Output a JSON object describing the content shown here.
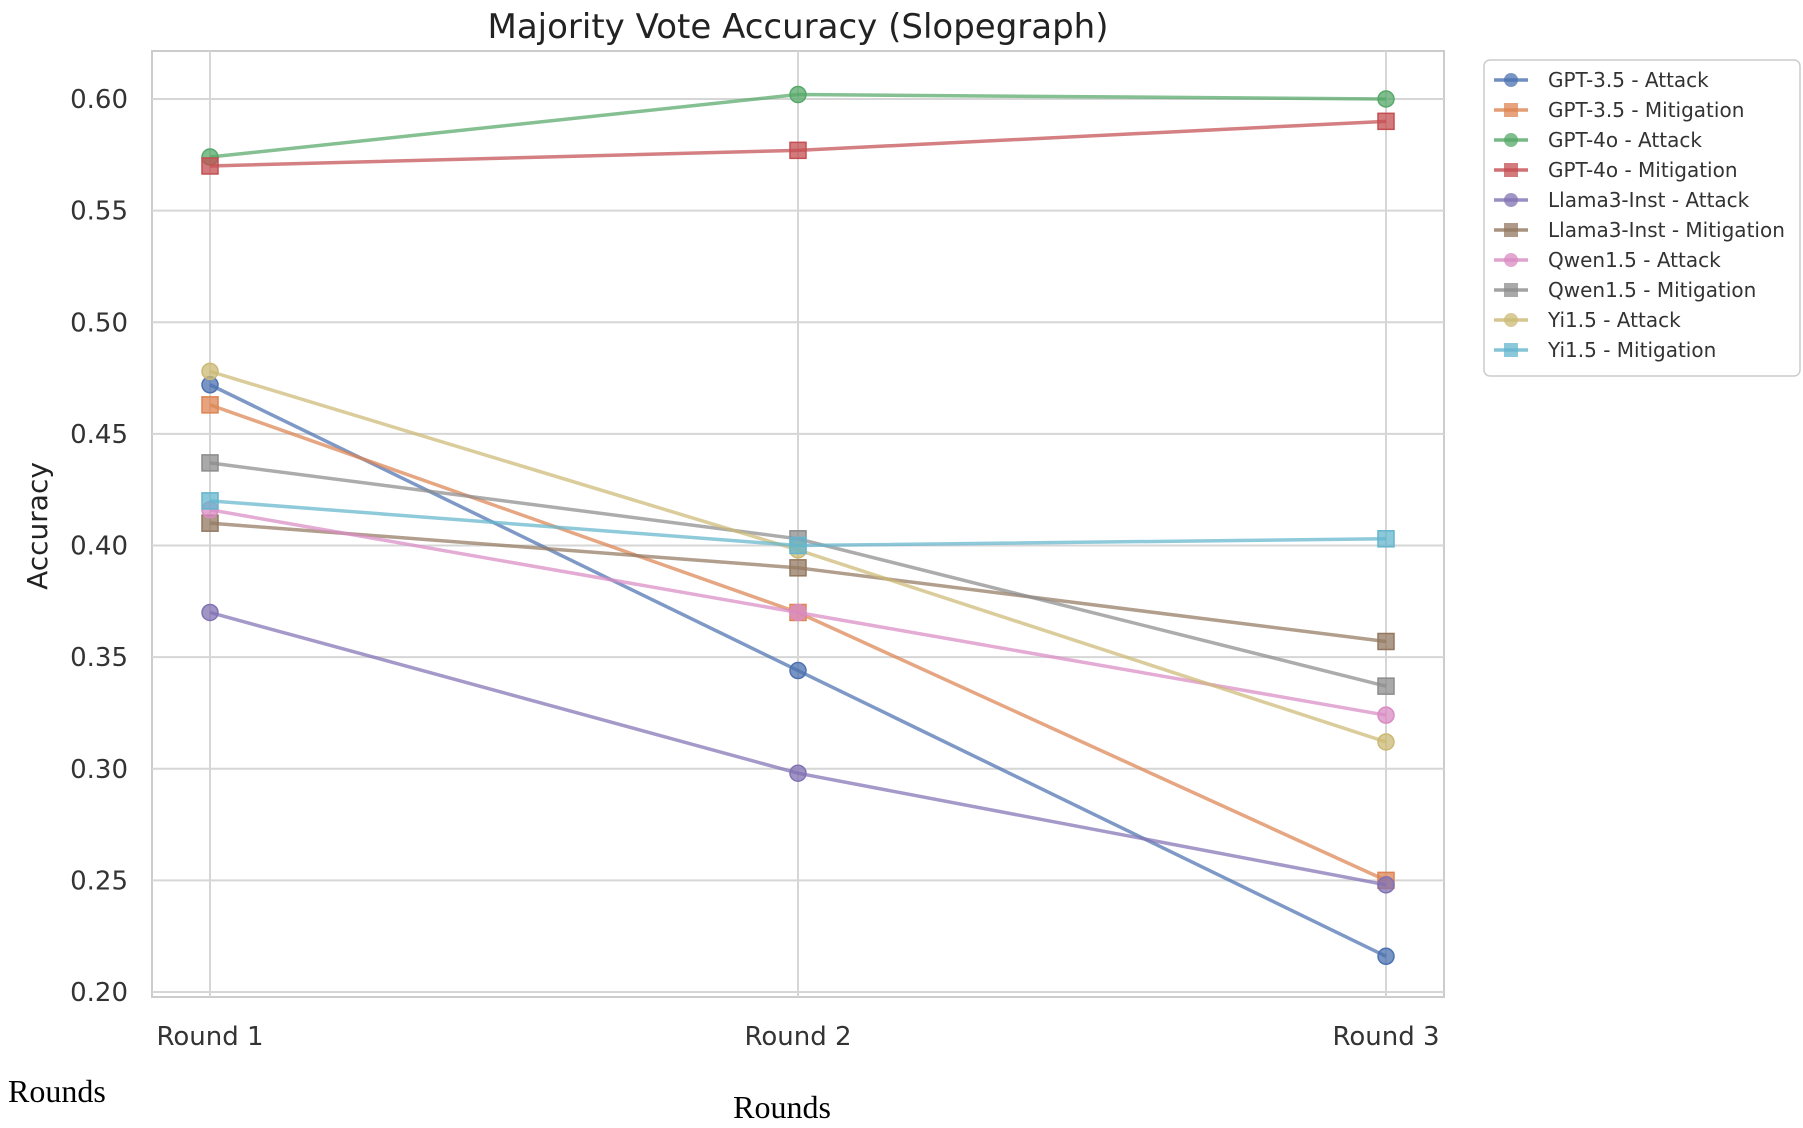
{
  "chart_data": {
    "type": "line",
    "title": "Majority Vote Accuracy (Slopegraph)",
    "xlabel": "Rounds",
    "ylabel": "Accuracy",
    "x": [
      "Round 1",
      "Round 2",
      "Round 3"
    ],
    "ylim": [
      0.2,
      0.62
    ],
    "yticks": [
      "0.20",
      "0.25",
      "0.30",
      "0.35",
      "0.40",
      "0.45",
      "0.50",
      "0.55",
      "0.60"
    ],
    "grid": true,
    "legend_position": "right",
    "series": [
      {
        "name": "GPT-3.5 - Attack",
        "values": [
          0.472,
          0.344,
          0.216
        ],
        "color": "#4c72b0",
        "marker": "circle"
      },
      {
        "name": "GPT-3.5 - Mitigation",
        "values": [
          0.463,
          0.37,
          0.25
        ],
        "color": "#dd8452",
        "marker": "square"
      },
      {
        "name": "GPT-4o - Attack",
        "values": [
          0.574,
          0.602,
          0.6
        ],
        "color": "#55a868",
        "marker": "circle"
      },
      {
        "name": "GPT-4o - Mitigation",
        "values": [
          0.57,
          0.577,
          0.59
        ],
        "color": "#c44e52",
        "marker": "square"
      },
      {
        "name": "Llama3-Inst - Attack",
        "values": [
          0.37,
          0.298,
          0.248
        ],
        "color": "#8172b3",
        "marker": "circle"
      },
      {
        "name": "Llama3-Inst - Mitigation",
        "values": [
          0.41,
          0.39,
          0.357
        ],
        "color": "#937860",
        "marker": "square"
      },
      {
        "name": "Qwen1.5 - Attack",
        "values": [
          0.416,
          0.37,
          0.324
        ],
        "color": "#da8bc3",
        "marker": "circle"
      },
      {
        "name": "Qwen1.5 - Mitigation",
        "values": [
          0.437,
          0.403,
          0.337
        ],
        "color": "#8c8c8c",
        "marker": "square"
      },
      {
        "name": "Yi1.5 - Attack",
        "values": [
          0.478,
          0.398,
          0.312
        ],
        "color": "#ccb974",
        "marker": "circle"
      },
      {
        "name": "Yi1.5 - Mitigation",
        "values": [
          0.42,
          0.4,
          0.403
        ],
        "color": "#64b5cd",
        "marker": "square"
      }
    ]
  },
  "extra_labels": {
    "rounds_left": "Rounds",
    "rounds_center": "Rounds"
  }
}
